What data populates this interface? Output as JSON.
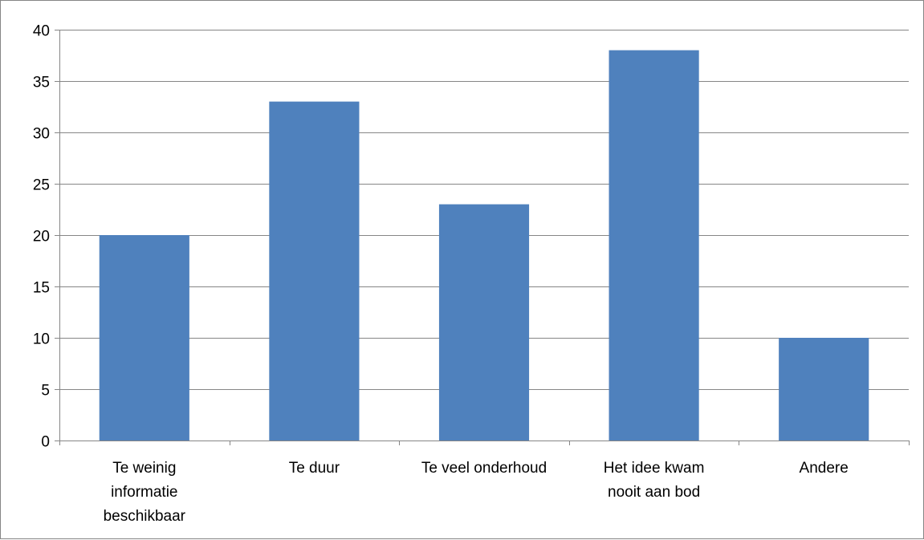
{
  "chart_data": {
    "type": "bar",
    "title": "",
    "xlabel": "",
    "ylabel": "",
    "categories": [
      [
        "Te weinig",
        "informatie",
        "beschikbaar"
      ],
      [
        "Te duur"
      ],
      [
        "Te veel onderhoud"
      ],
      [
        "Het idee kwam",
        "nooit aan bod"
      ],
      [
        "Andere"
      ]
    ],
    "values": [
      20,
      33,
      23,
      38,
      10
    ],
    "ylim": [
      0,
      40
    ],
    "yticks": [
      "0",
      "5",
      "10",
      "15",
      "20",
      "25",
      "30",
      "35",
      "40"
    ],
    "grid": true,
    "legend": "none",
    "colors": {
      "bar": "#4F81BD",
      "grid": "#868686",
      "axis": "#868686",
      "border": "#868686"
    }
  }
}
